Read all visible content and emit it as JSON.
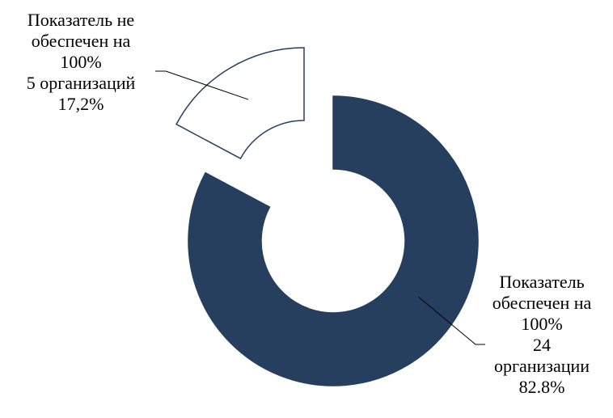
{
  "chart_data": {
    "type": "pie",
    "variant": "donut-exploded",
    "slices": [
      {
        "name": "Показатель обеспечен на 100%",
        "count": "24",
        "count_unit": "организации",
        "percent": 82.8,
        "percent_label": "82.8%",
        "label_lines": [
          "Показатель",
          "обеспечен на",
          "100%",
          "24",
          "организации",
          "82.8%"
        ],
        "fill": "#263f5f",
        "stroke": "#263f5f",
        "exploded": false
      },
      {
        "name": "Показатель не обеспечен на 100%",
        "count": "5",
        "count_unit": "организаций",
        "percent": 17.2,
        "percent_label": "17,2%",
        "label_lines": [
          "Показатель не",
          "обеспечен на",
          "100%",
          "5 организаций",
          "17,2%"
        ],
        "fill": "#ffffff",
        "stroke": "#263f5f",
        "exploded": true
      }
    ],
    "start_angle": "12 o'clock",
    "direction": "clockwise",
    "legend": "none"
  }
}
